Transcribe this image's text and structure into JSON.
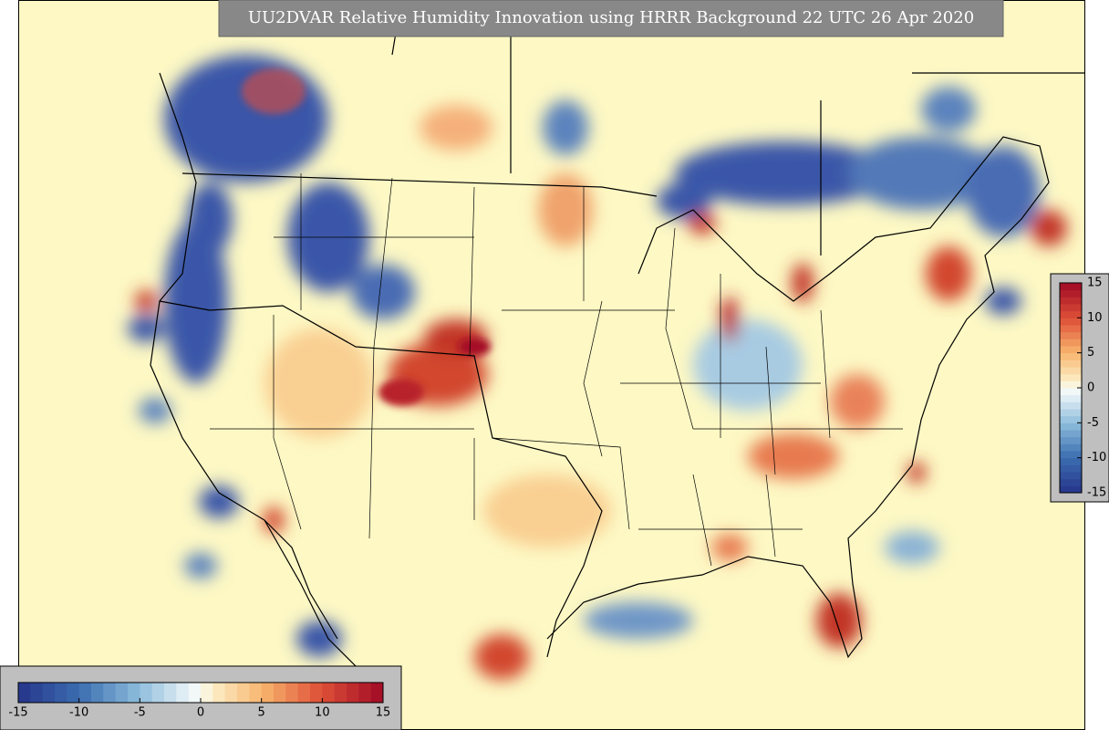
{
  "map": {
    "title": "UU2DVAR Relative Humidity Innovation using HRRR Background 22 UTC 26 Apr 2020",
    "colorbar": {
      "range": [
        -15,
        15
      ],
      "ticks": [
        -15,
        -10,
        -5,
        0,
        5,
        10,
        15
      ]
    }
  }
}
